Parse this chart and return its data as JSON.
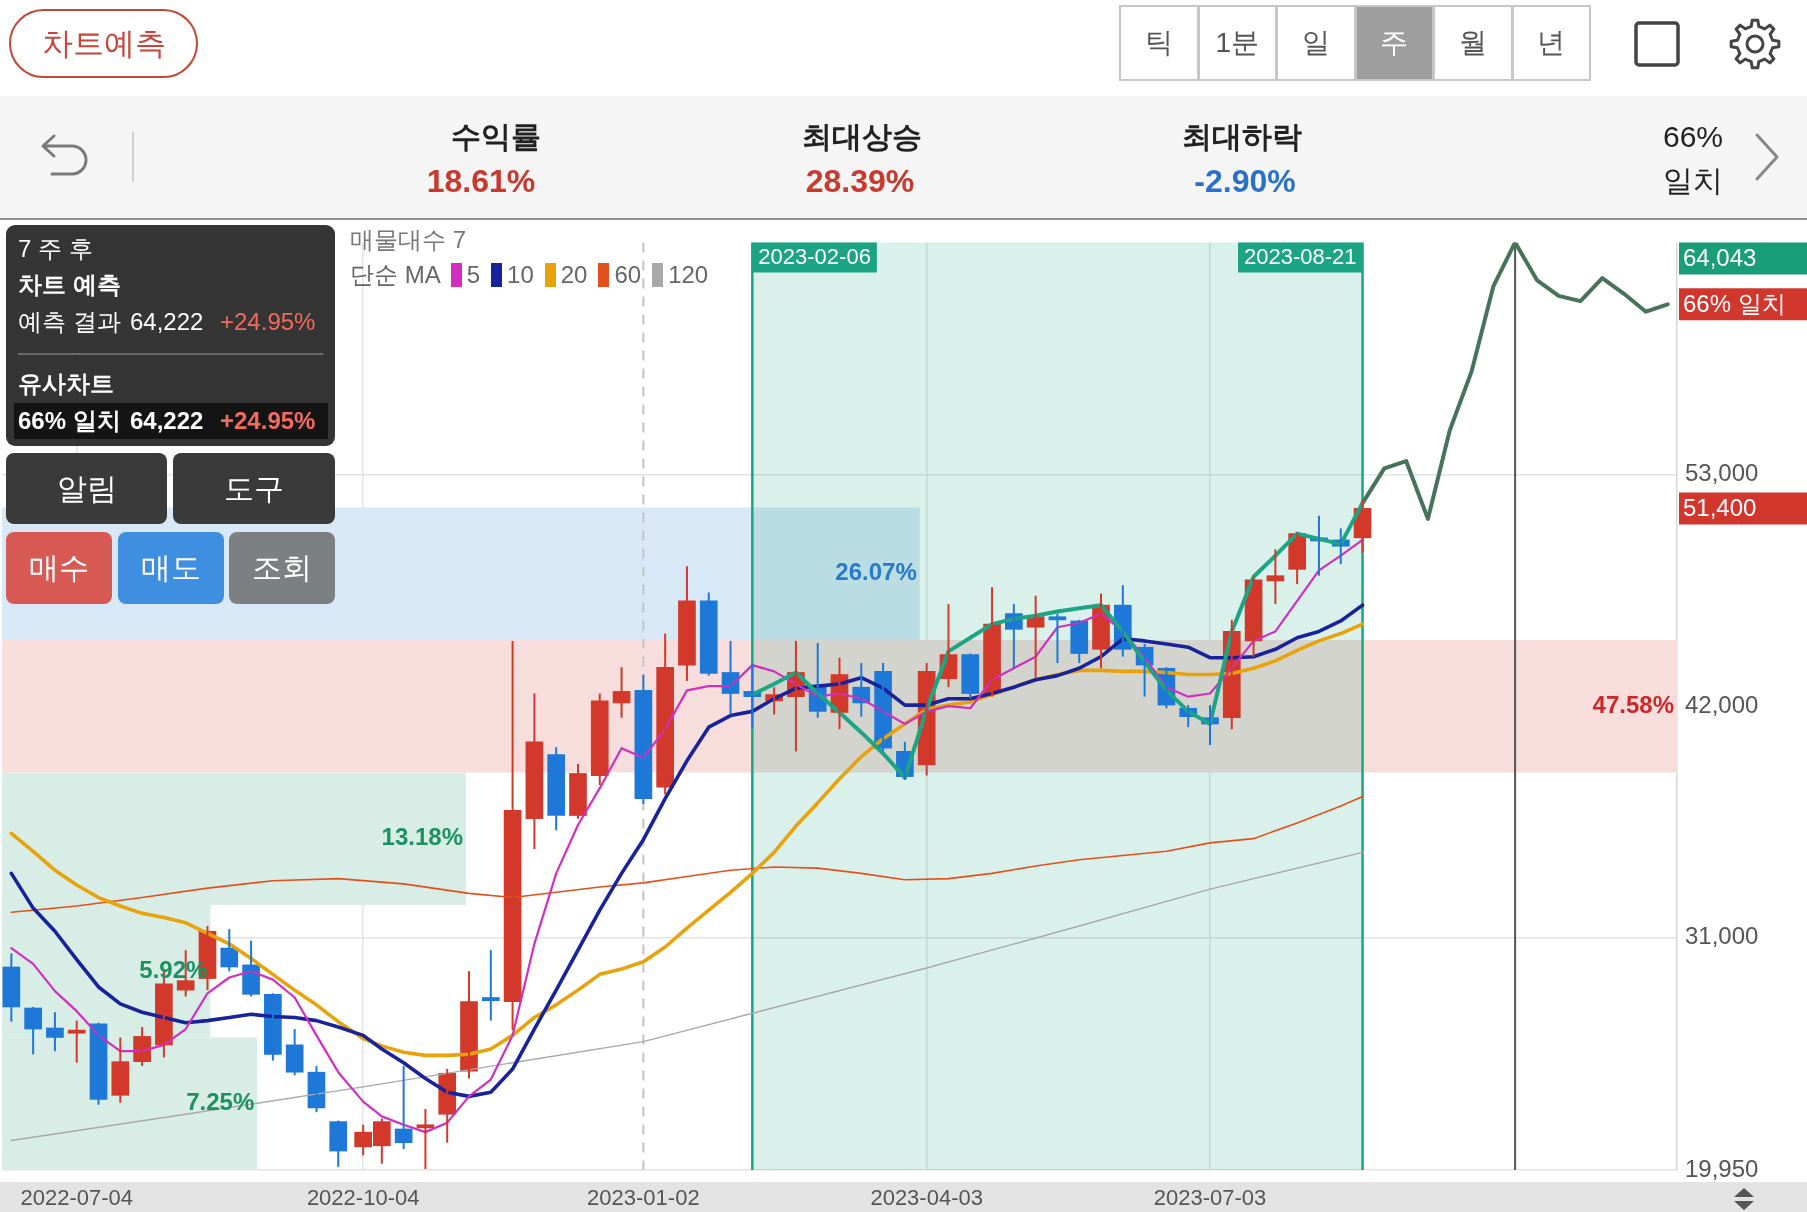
{
  "chart_data": {
    "type": "candlestick",
    "x": [
      "2022-06-13",
      "2022-06-20",
      "2022-06-27",
      "2022-07-04",
      "2022-07-11",
      "2022-07-18",
      "2022-07-25",
      "2022-08-01",
      "2022-08-08",
      "2022-08-15",
      "2022-08-22",
      "2022-08-29",
      "2022-09-05",
      "2022-09-12",
      "2022-09-19",
      "2022-09-26",
      "2022-10-04",
      "2022-10-10",
      "2022-10-17",
      "2022-10-24",
      "2022-10-31",
      "2022-11-07",
      "2022-11-14",
      "2022-11-21",
      "2022-11-28",
      "2022-12-05",
      "2022-12-12",
      "2022-12-19",
      "2022-12-26",
      "2023-01-02",
      "2023-01-09",
      "2023-01-16",
      "2023-01-23",
      "2023-01-30",
      "2023-02-06",
      "2023-02-13",
      "2023-02-20",
      "2023-02-27",
      "2023-03-06",
      "2023-03-13",
      "2023-03-20",
      "2023-03-27",
      "2023-04-03",
      "2023-04-10",
      "2023-04-17",
      "2023-04-24",
      "2023-05-01",
      "2023-05-08",
      "2023-05-15",
      "2023-05-22",
      "2023-05-29",
      "2023-06-05",
      "2023-06-12",
      "2023-06-19",
      "2023-06-26",
      "2023-07-03",
      "2023-07-10",
      "2023-07-17",
      "2023-07-24",
      "2023-07-31",
      "2023-08-07",
      "2023-08-14",
      "2023-08-21"
    ],
    "ohlc": [
      [
        29600,
        30250,
        27000,
        27700
      ],
      [
        27650,
        27700,
        25450,
        26650
      ],
      [
        26700,
        27450,
        25600,
        26250
      ],
      [
        26450,
        27050,
        25050,
        26600
      ],
      [
        26900,
        26950,
        23050,
        23300
      ],
      [
        23500,
        26250,
        23150,
        25100
      ],
      [
        25100,
        26750,
        24900,
        26300
      ],
      [
        25900,
        29400,
        25300,
        28800
      ],
      [
        28500,
        30400,
        28200,
        28950
      ],
      [
        29050,
        31550,
        28500,
        31300
      ],
      [
        30500,
        31400,
        29400,
        29600
      ],
      [
        29700,
        30850,
        28200,
        28300
      ],
      [
        28300,
        28350,
        25150,
        25450
      ],
      [
        25900,
        26650,
        24450,
        24600
      ],
      [
        24600,
        24900,
        22700,
        22900
      ],
      [
        22250,
        22300,
        20100,
        20850
      ],
      [
        21050,
        22100,
        20650,
        21750
      ],
      [
        21100,
        22400,
        20250,
        22250
      ],
      [
        21900,
        24900,
        20950,
        21250
      ],
      [
        21950,
        22850,
        20000,
        22100
      ],
      [
        22600,
        24750,
        21250,
        24550
      ],
      [
        24650,
        29400,
        24300,
        27950
      ],
      [
        28150,
        30400,
        27050,
        28000
      ],
      [
        27950,
        45100,
        26600,
        37050
      ],
      [
        36650,
        42600,
        35200,
        40300
      ],
      [
        39700,
        40050,
        36100,
        36800
      ],
      [
        36800,
        39250,
        36650,
        38800
      ],
      [
        38700,
        42600,
        38250,
        42250
      ],
      [
        42150,
        43850,
        41450,
        42700
      ],
      [
        42750,
        43500,
        37350,
        37600
      ],
      [
        38150,
        45450,
        37800,
        43850
      ],
      [
        43950,
        48650,
        43200,
        47000
      ],
      [
        47000,
        47400,
        43450,
        43550
      ],
      [
        43600,
        45100,
        41600,
        42600
      ],
      [
        42700,
        44000,
        40950,
        42450
      ],
      [
        42250,
        42900,
        41600,
        42550
      ],
      [
        42450,
        45100,
        39850,
        43600
      ],
      [
        43000,
        45000,
        41450,
        41750
      ],
      [
        41700,
        44300,
        40900,
        43500
      ],
      [
        42900,
        44050,
        41500,
        42150
      ],
      [
        43650,
        44050,
        39850,
        40000
      ],
      [
        39850,
        40300,
        38500,
        38650
      ],
      [
        39200,
        44050,
        38700,
        43650
      ],
      [
        43300,
        46850,
        42900,
        44450
      ],
      [
        44450,
        44500,
        42350,
        42600
      ],
      [
        42600,
        47650,
        42450,
        45900
      ],
      [
        46400,
        46850,
        43800,
        45650
      ],
      [
        45750,
        47250,
        43350,
        46250
      ],
      [
        46250,
        46400,
        44050,
        46100
      ],
      [
        46050,
        46100,
        44050,
        44500
      ],
      [
        44700,
        47350,
        43800,
        46800
      ],
      [
        46800,
        47750,
        44350,
        44700
      ],
      [
        44800,
        44950,
        42450,
        43950
      ],
      [
        43800,
        43850,
        41900,
        42050
      ],
      [
        41900,
        42050,
        41000,
        41500
      ],
      [
        41450,
        42050,
        40150,
        41150
      ],
      [
        41450,
        46100,
        40900,
        45550
      ],
      [
        45100,
        48150,
        44350,
        48000
      ],
      [
        47950,
        49450,
        46850,
        48200
      ],
      [
        48500,
        50250,
        47800,
        50200
      ],
      [
        50000,
        51050,
        48200,
        49850
      ],
      [
        49900,
        50450,
        48750,
        49600
      ],
      [
        50000,
        51800,
        49300,
        51400
      ]
    ],
    "colors": [
      "#1e78d7",
      "#1e78d7",
      "#1e78d7",
      "#d3392b",
      "#1e78d7",
      "#d3392b",
      "#d3392b",
      "#d3392b",
      "#d3392b",
      "#d3392b",
      "#1e78d7",
      "#1e78d7",
      "#1e78d7",
      "#1e78d7",
      "#1e78d7",
      "#1e78d7",
      "#d3392b",
      "#d3392b",
      "#1e78d7",
      "#d3392b",
      "#d3392b",
      "#d3392b",
      "#1e78d7",
      "#d3392b",
      "#d3392b",
      "#1e78d7",
      "#d3392b",
      "#d3392b",
      "#d3392b",
      "#1e78d7",
      "#d3392b",
      "#d3392b",
      "#1e78d7",
      "#1e78d7",
      "#1e78d7",
      "#d3392b",
      "#d3392b",
      "#1e78d7",
      "#d3392b",
      "#1e78d7",
      "#1e78d7",
      "#1e78d7",
      "#d3392b",
      "#d3392b",
      "#1e78d7",
      "#d3392b",
      "#1e78d7",
      "#d3392b",
      "#1e78d7",
      "#1e78d7",
      "#d3392b",
      "#1e78d7",
      "#1e78d7",
      "#1e78d7",
      "#1e78d7",
      "#1e78d7",
      "#d3392b",
      "#d3392b",
      "#d3392b",
      "#d3392b",
      "#1e78d7",
      "#1e78d7",
      "#d3392b"
    ],
    "xlim": [
      "2022-06-10",
      "2023-11-30"
    ],
    "xticks": [
      "2022-07-04",
      "2022-10-04",
      "2023-01-02",
      "2023-04-03",
      "2023-07-03"
    ],
    "ylim": [
      19950,
      64043
    ],
    "yticks": [
      {
        "value": 19950,
        "label": "19,950"
      },
      {
        "value": 31000,
        "label": "31,000"
      },
      {
        "value": 42000,
        "label": "42,000"
      },
      {
        "value": 53000,
        "label": "53,000"
      }
    ],
    "grid": true,
    "legend": "top left",
    "legend_title": "단순 MA",
    "marker": "none",
    "series": [
      {
        "type": "line",
        "name": "5",
        "color": "#d22fc0",
        "values": [
          30500,
          29750,
          28450,
          27500,
          26350,
          25600,
          25600,
          25900,
          26650,
          28350,
          29100,
          29400,
          29000,
          28150,
          26350,
          24600,
          23200,
          22500,
          22100,
          21750,
          22200,
          23450,
          24250,
          26350,
          30700,
          34050,
          36350,
          38100,
          40000,
          39550,
          40900,
          42750,
          42950,
          42950,
          43950,
          43650,
          43050,
          42450,
          42600,
          42350,
          41750,
          41150,
          41750,
          42000,
          41900,
          43250,
          43800,
          44350,
          45750,
          45950,
          46400,
          45550,
          44300,
          42900,
          42450,
          42600,
          43800,
          45100,
          45550,
          47000,
          48450,
          49150,
          49900
        ]
      },
      {
        "type": "line",
        "name": "10",
        "color": "#18239b",
        "values": [
          34050,
          32400,
          31300,
          29950,
          28650,
          27850,
          27450,
          27200,
          26950,
          27050,
          27200,
          27350,
          27250,
          27200,
          27050,
          26750,
          26350,
          25700,
          25050,
          24300,
          23650,
          23450,
          23650,
          24750,
          26650,
          28500,
          30400,
          32300,
          34050,
          35650,
          37600,
          39400,
          41000,
          41550,
          41750,
          42350,
          42850,
          42950,
          43050,
          43350,
          42850,
          42050,
          42050,
          42350,
          42350,
          42600,
          42900,
          43250,
          43450,
          43800,
          44350,
          45200,
          45100,
          44950,
          44800,
          44300,
          44300,
          44350,
          44700,
          45250,
          45550,
          46050,
          46800
        ]
      },
      {
        "type": "line",
        "name": "20",
        "color": "#e8a20a",
        "values": [
          35950,
          35100,
          34200,
          33500,
          32900,
          32500,
          32150,
          31950,
          31700,
          31200,
          30700,
          30000,
          29250,
          28500,
          27800,
          27000,
          26200,
          25850,
          25550,
          25400,
          25400,
          25450,
          25700,
          26350,
          27200,
          27800,
          28500,
          29250,
          29500,
          29850,
          30550,
          31450,
          32300,
          33150,
          34050,
          35050,
          36300,
          37400,
          38550,
          39600,
          40450,
          41150,
          41850,
          42050,
          42200,
          42550,
          42900,
          43250,
          43500,
          43700,
          43700,
          43650,
          43650,
          43600,
          43500,
          43500,
          43550,
          43800,
          44150,
          44650,
          45100,
          45450,
          45900
        ]
      },
      {
        "type": "line",
        "name": "60",
        "color": "#e4501c",
        "x": [
          "2022-06-13",
          "2022-07-04",
          "2022-07-25",
          "2022-08-15",
          "2022-09-05",
          "2022-09-26",
          "2022-10-17",
          "2022-11-07",
          "2022-11-21",
          "2022-12-05",
          "2022-12-19",
          "2023-01-02",
          "2023-01-16",
          "2023-01-30",
          "2023-02-13",
          "2023-02-27",
          "2023-03-13",
          "2023-03-27",
          "2023-04-10",
          "2023-04-24",
          "2023-05-08",
          "2023-05-22",
          "2023-06-05",
          "2023-06-19",
          "2023-07-03",
          "2023-07-17",
          "2023-07-31",
          "2023-08-14",
          "2023-08-21"
        ],
        "values": [
          32200,
          32500,
          32900,
          33350,
          33700,
          33800,
          33550,
          33100,
          32900,
          33150,
          33400,
          33600,
          33900,
          34200,
          34350,
          34300,
          34050,
          33750,
          33800,
          34050,
          34400,
          34700,
          34900,
          35100,
          35500,
          35700,
          36450,
          37250,
          37700
        ]
      },
      {
        "type": "line",
        "name": "120",
        "color": "#a9a9a9",
        "x": [
          "2022-06-13",
          "2022-08-08",
          "2022-10-04",
          "2022-11-21",
          "2023-01-02",
          "2023-02-06",
          "2023-04-03",
          "2023-05-22",
          "2023-07-03",
          "2023-08-21"
        ],
        "values": [
          21350,
          22600,
          23900,
          25050,
          26050,
          27400,
          29550,
          31550,
          33300,
          35050
        ]
      },
      {
        "type": "line",
        "color": "#1ba585",
        "x": [
          "2023-02-06",
          "2023-02-13",
          "2023-02-20",
          "2023-02-27",
          "2023-03-06",
          "2023-03-13",
          "2023-03-20",
          "2023-03-27",
          "2023-04-03",
          "2023-04-10",
          "2023-04-17",
          "2023-04-24",
          "2023-05-01",
          "2023-05-08",
          "2023-05-15",
          "2023-05-22",
          "2023-05-29",
          "2023-06-05",
          "2023-06-12",
          "2023-06-19",
          "2023-06-26",
          "2023-07-03",
          "2023-07-10",
          "2023-07-17",
          "2023-07-24",
          "2023-07-31",
          "2023-08-07",
          "2023-08-14",
          "2023-08-21"
        ],
        "values": [
          42550,
          43050,
          43600,
          42600,
          41700,
          40750,
          39750,
          38600,
          41850,
          44600,
          45250,
          45900,
          46150,
          46300,
          46500,
          46650,
          46800,
          45550,
          44100,
          42750,
          41750,
          41150,
          45550,
          48150,
          49150,
          50200,
          49950,
          49700,
          51650
        ]
      },
      {
        "type": "line",
        "color": "#46735a",
        "x": [
          "2023-08-21",
          "2023-08-28",
          "2023-09-04",
          "2023-09-11",
          "2023-09-18",
          "2023-09-25",
          "2023-10-02",
          "2023-10-09",
          "2023-10-16",
          "2023-10-23",
          "2023-10-30",
          "2023-11-06",
          "2023-11-13",
          "2023-11-20",
          "2023-11-27"
        ],
        "values": [
          51650,
          53300,
          53650,
          50900,
          55100,
          57900,
          61950,
          64043,
          62250,
          61500,
          61250,
          62350,
          61600,
          60750,
          61100
        ]
      }
    ],
    "bands": [
      {
        "axis": "y",
        "from": 19950,
        "to": 26249,
        "label": "7.25%",
        "color": "#d8ede5"
      },
      {
        "axis": "y",
        "from": 26249,
        "to": 32548,
        "label": "5.92%",
        "color": "#d8ede5"
      },
      {
        "axis": "y",
        "from": 32548,
        "to": 38847,
        "label": "13.18%",
        "color": "#d8ede5"
      },
      {
        "axis": "y",
        "from": 38847,
        "to": 45146,
        "label": "47.58%",
        "color": "#f8dddd"
      },
      {
        "axis": "y",
        "from": 45146,
        "to": 51445,
        "label": "26.07%",
        "color": "#d9e8f7"
      },
      {
        "axis": "x",
        "from": "2023-02-06",
        "to": "2023-08-21",
        "color": "#1ba585"
      }
    ],
    "ref_lines": [
      {
        "axis": "x",
        "value": "2023-01-02",
        "color": "#c4c4c4",
        "line_style": "dashed"
      },
      {
        "axis": "x",
        "value": "2023-10-09",
        "color": "#555555"
      },
      {
        "axis": "x",
        "value": "2023-02-06",
        "label": "2023-02-06",
        "color": "#1ba585"
      },
      {
        "axis": "x",
        "value": "2023-08-21",
        "label": "2023-08-21",
        "color": "#1ba585"
      }
    ],
    "annotations": [
      "차트예측",
      "틱",
      "1분",
      "일",
      "주",
      "월",
      "년",
      "수익률",
      "18.61%",
      "최대상승",
      "28.39%",
      "최대하락",
      "-2.90%",
      "66% 일치",
      "7 주 후",
      "차트 예측",
      "예측 결과",
      "64,222",
      "+24.95%",
      "유사차트",
      "66% 일치",
      "64,222",
      "+24.95%",
      "알림",
      "도구",
      "매수",
      "매도",
      "조회",
      "매물대수 7",
      "64,043",
      "66% 일치",
      "51,400"
    ]
  }
}
